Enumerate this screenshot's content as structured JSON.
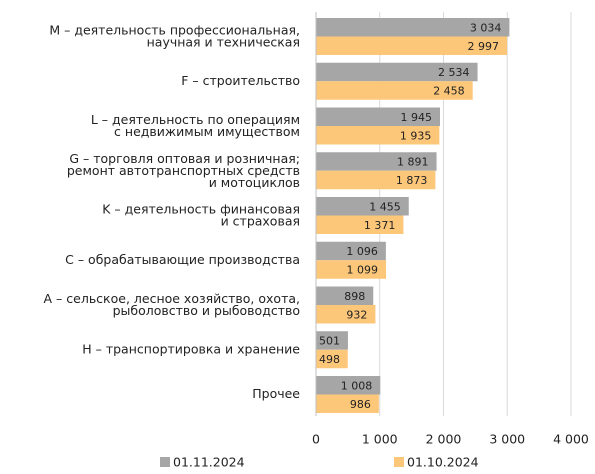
{
  "chart_data": {
    "type": "bar",
    "orientation": "horizontal",
    "categories": [
      "M – деятельность профессиональная,\nнаучная и техническая",
      "F – строительство",
      "L – деятельность по операциям\nс недвижимым имуществом",
      "G – торговля оптовая и розничная;\nремонт автотранспортных средств\nи мотоциклов",
      "K – деятельность финансовая\nи страховая",
      "C – обрабатывающие производства",
      "A – сельское, лесное хозяйство, охота,\nрыболовство и рыбоводство",
      "H – транспортировка и хранение",
      "Прочее"
    ],
    "series": [
      {
        "name": "01.11.2024",
        "color": "#a6a6a6",
        "values": [
          3034,
          2534,
          1945,
          1891,
          1455,
          1096,
          898,
          501,
          1008
        ],
        "value_labels": [
          "3 034",
          "2 534",
          "1 945",
          "1 891",
          "1 455",
          "1 096",
          "898",
          "501",
          "1 008"
        ]
      },
      {
        "name": "01.10.2024",
        "color": "#fdc77a",
        "values": [
          2997,
          2458,
          1935,
          1873,
          1371,
          1099,
          932,
          498,
          986
        ],
        "value_labels": [
          "2 997",
          "2 458",
          "1 935",
          "1 873",
          "1 371",
          "1 099",
          "932",
          "498",
          "986"
        ]
      }
    ],
    "xlim": [
      0,
      4000
    ],
    "xticks": [
      0,
      {
        "value": 1000,
        "label": "1 000"
      },
      {
        "value": 2000,
        "label": "2 000"
      },
      {
        "value": 3000,
        "label": "3 000"
      },
      {
        "value": 4000,
        "label": "4 000"
      }
    ],
    "grid": true
  }
}
